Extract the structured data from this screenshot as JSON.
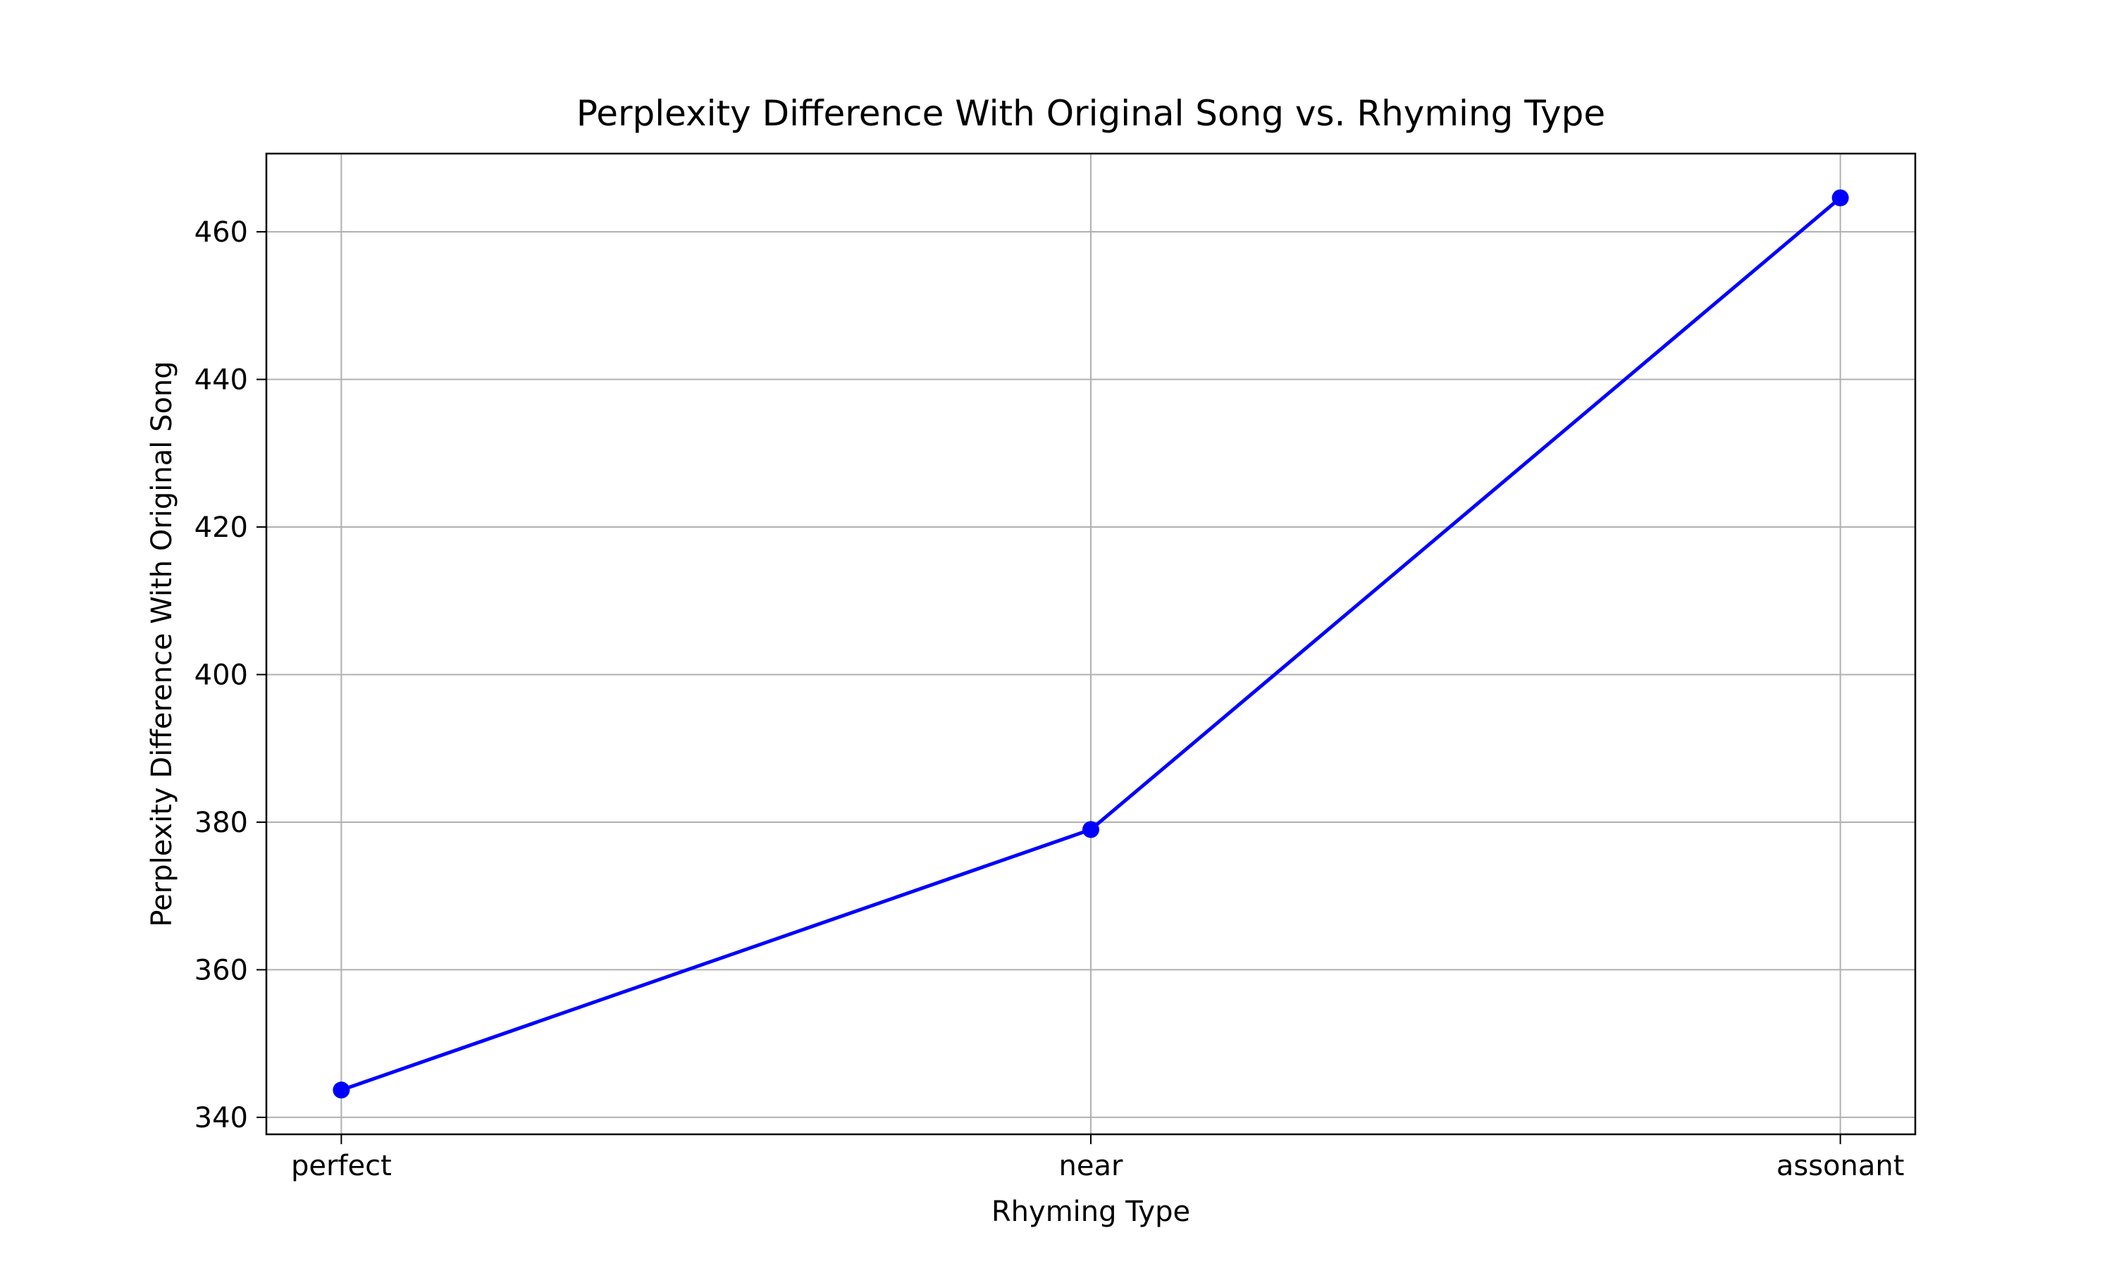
{
  "chart_data": {
    "type": "line",
    "title": "Perplexity Difference With Original Song vs. Rhyming Type",
    "xlabel": "Rhyming Type",
    "ylabel": "Perplexity Difference With Original Song",
    "categories": [
      "perfect",
      "near",
      "assonant"
    ],
    "series": [
      {
        "values": [
          343.7,
          379.0,
          464.6
        ],
        "color": "#0000ff",
        "marker": "circle"
      }
    ],
    "ylim": [
      337.7,
      470.6
    ],
    "yticks": [
      340,
      360,
      380,
      400,
      420,
      440,
      460
    ],
    "grid": true,
    "legend": "none"
  }
}
